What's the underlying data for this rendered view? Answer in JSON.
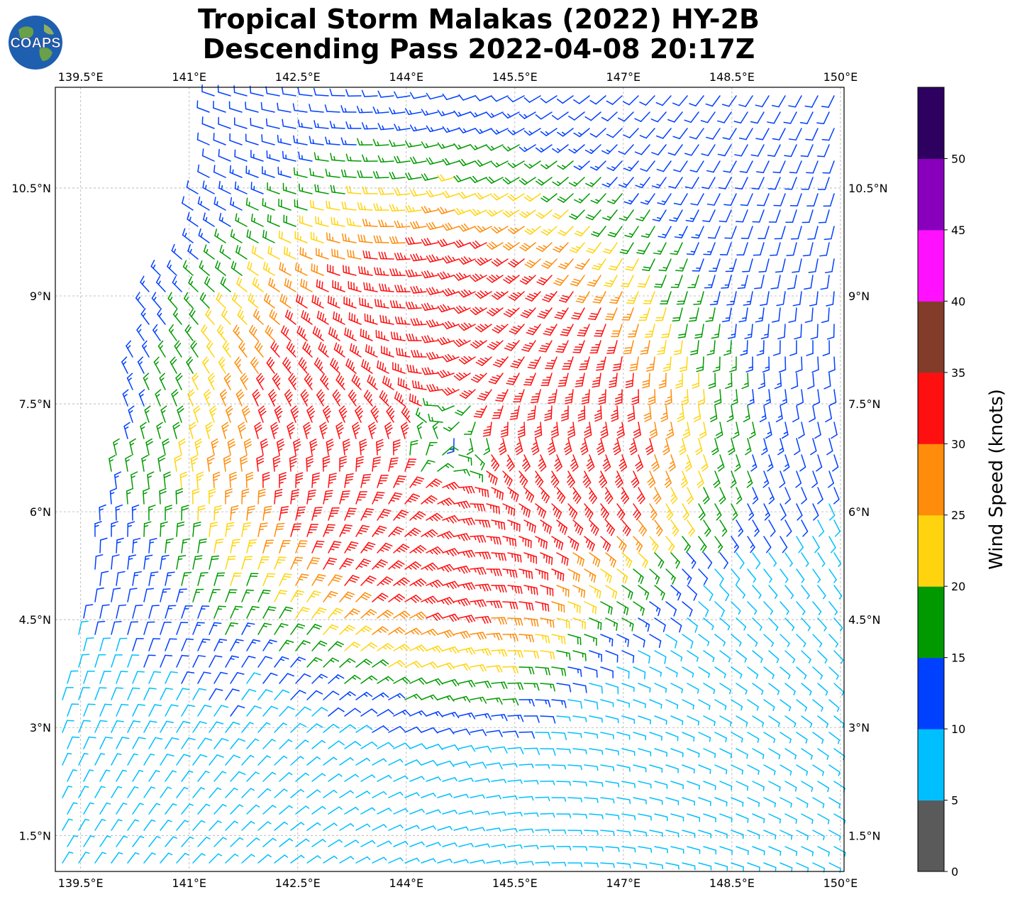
{
  "title": {
    "line1": "Tropical Storm Malakas (2022) HY-2B",
    "line2": "Descending Pass 2022-04-08 20:17Z"
  },
  "logo": {
    "text": "COAPS",
    "icon": "globe-logo-icon"
  },
  "map": {
    "lon_range": [
      139.15,
      150.05
    ],
    "lat_range": [
      1.0,
      11.9
    ],
    "lon_ticks": [
      "139.5°E",
      "141°E",
      "142.5°E",
      "144°E",
      "145.5°E",
      "147°E",
      "148.5°E",
      "150°E"
    ],
    "lat_ticks": [
      "10.5°N",
      "9°N",
      "7.5°N",
      "6°N",
      "4.5°N",
      "3°N",
      "1.5°N"
    ],
    "storm_center": {
      "lon": 144.6,
      "lat": 7.0
    },
    "grid": true,
    "symbol": "wind barbs"
  },
  "colorbar": {
    "label": "Wind Speed (knots)",
    "tick_labels": [
      "0",
      "5",
      "10",
      "15",
      "20",
      "25",
      "30",
      "35",
      "40",
      "45",
      "50"
    ],
    "bins": [
      {
        "min": 0,
        "max": 5,
        "color": "#5a5a5a"
      },
      {
        "min": 5,
        "max": 10,
        "color": "#00bfff"
      },
      {
        "min": 10,
        "max": 15,
        "color": "#0040ff"
      },
      {
        "min": 15,
        "max": 20,
        "color": "#009a00"
      },
      {
        "min": 20,
        "max": 25,
        "color": "#ffd40f"
      },
      {
        "min": 25,
        "max": 30,
        "color": "#ff8c0a"
      },
      {
        "min": 30,
        "max": 35,
        "color": "#ff1010"
      },
      {
        "min": 35,
        "max": 40,
        "color": "#833c2a"
      },
      {
        "min": 40,
        "max": 45,
        "color": "#ff10ff"
      },
      {
        "min": 45,
        "max": 50,
        "color": "#8800bb"
      },
      {
        "min": 50,
        "max": 55,
        "color": "#2e0060"
      }
    ]
  }
}
